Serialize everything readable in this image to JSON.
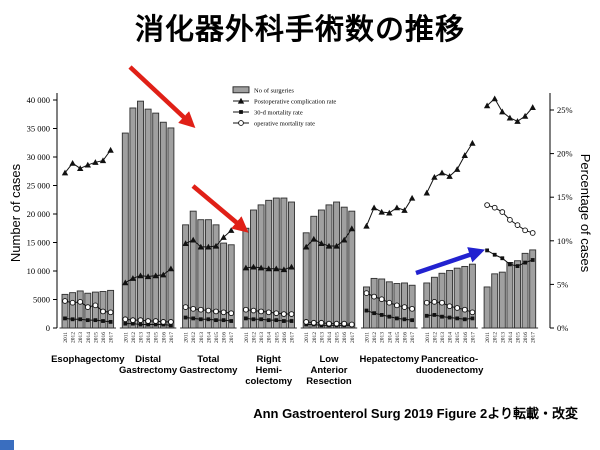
{
  "slide": {
    "title": "消化器外科手術数の推移",
    "attribution": "Ann Gastroenterol Surg 2019 Figure 2より転載・改変"
  },
  "chart_data": {
    "type": "bar",
    "subtype": "grouped bars (left axis) with three line series (right axis)",
    "title": "消化器外科手術数の推移",
    "years": [
      "2011",
      "2012",
      "2013",
      "2014",
      "2015",
      "2016",
      "2017"
    ],
    "left_axis": {
      "label": "Number of cases",
      "min": 0,
      "max": 40000,
      "tick_values": [
        0,
        5000,
        10000,
        15000,
        20000,
        25000,
        30000,
        35000,
        40000
      ],
      "tick_labels": [
        "0",
        "5000",
        "10 000",
        "15 000",
        "20 000",
        "25 000",
        "30 000",
        "35 000",
        "40 000"
      ]
    },
    "right_axis": {
      "label": "Percentage of cases",
      "min": 0,
      "max": 25,
      "tick_values": [
        0,
        5,
        10,
        15,
        20,
        25
      ],
      "tick_labels": [
        "0%",
        "5%",
        "10%",
        "15%",
        "20%",
        "25%"
      ]
    },
    "legend": [
      {
        "marker": "bar",
        "label": "No of surgeries"
      },
      {
        "marker": "triangle",
        "label": "Postoperative complication rate"
      },
      {
        "marker": "square",
        "label": "30-d mortality rate"
      },
      {
        "marker": "circle",
        "label": "operative mortality rate"
      }
    ],
    "groups": [
      {
        "label": "Esophagectomy",
        "label_lines": [
          "Esophagectomy"
        ],
        "surgeries": [
          5900,
          6200,
          6500,
          6100,
          6300,
          6400,
          6600
        ],
        "complication_rate": [
          17.8,
          18.9,
          18.3,
          18.7,
          19.0,
          19.2,
          20.4
        ],
        "mortality_30d": [
          1.1,
          1.0,
          1.0,
          0.9,
          0.9,
          0.8,
          0.7
        ],
        "operative_mortality": [
          3.1,
          2.9,
          3.0,
          2.4,
          2.6,
          1.9,
          1.8
        ]
      },
      {
        "label": "Distal Gastrectomy",
        "label_lines": [
          "Distal",
          "Gastrectomy"
        ],
        "surgeries": [
          34200,
          38600,
          39800,
          38400,
          37700,
          36100,
          35100
        ],
        "complication_rate": [
          5.2,
          5.7,
          6.0,
          5.9,
          6.0,
          6.1,
          6.8
        ],
        "mortality_30d": [
          0.5,
          0.5,
          0.4,
          0.4,
          0.4,
          0.4,
          0.3
        ],
        "operative_mortality": [
          1.0,
          0.9,
          0.9,
          0.8,
          0.8,
          0.7,
          0.7
        ]
      },
      {
        "label": "Total Gastrectomy",
        "label_lines": [
          "Total",
          "Gastrectomy"
        ],
        "surgeries": [
          18100,
          20500,
          19000,
          19000,
          18100,
          14900,
          14600
        ],
        "complication_rate": [
          9.7,
          10.1,
          9.3,
          9.3,
          9.4,
          10.4,
          11.2
        ],
        "mortality_30d": [
          1.2,
          1.1,
          1.0,
          1.0,
          0.9,
          0.9,
          0.8
        ],
        "operative_mortality": [
          2.4,
          2.2,
          2.1,
          2.0,
          1.9,
          1.8,
          1.7
        ]
      },
      {
        "label": "Right Hemi-colectomy",
        "label_lines": [
          "Right",
          "Hemi-",
          "colectomy"
        ],
        "surgeries": [
          17500,
          20700,
          21600,
          22400,
          22800,
          22800,
          22100
        ],
        "complication_rate": [
          6.9,
          7.0,
          6.9,
          6.8,
          6.8,
          6.7,
          7.0
        ],
        "mortality_30d": [
          1.1,
          1.0,
          1.0,
          0.9,
          0.9,
          0.8,
          0.8
        ],
        "operative_mortality": [
          2.1,
          2.0,
          1.9,
          1.8,
          1.7,
          1.6,
          1.6
        ]
      },
      {
        "label": "Low Anterior Resection",
        "label_lines": [
          "Low",
          "Anterior",
          "Resection"
        ],
        "surgeries": [
          16700,
          19600,
          20700,
          21600,
          22100,
          21200,
          20500
        ],
        "complication_rate": [
          9.3,
          10.2,
          9.7,
          9.4,
          9.4,
          10.1,
          11.4
        ],
        "mortality_30d": [
          0.4,
          0.4,
          0.3,
          0.3,
          0.3,
          0.3,
          0.3
        ],
        "operative_mortality": [
          0.7,
          0.6,
          0.6,
          0.5,
          0.5,
          0.5,
          0.4
        ]
      },
      {
        "label": "Hepatectomy",
        "label_lines": [
          "Hepatectomy"
        ],
        "surgeries": [
          7200,
          8700,
          8600,
          8100,
          7800,
          7900,
          7500
        ],
        "complication_rate": [
          11.7,
          13.8,
          13.3,
          13.2,
          13.8,
          13.5,
          14.9
        ],
        "mortality_30d": [
          2.0,
          1.7,
          1.5,
          1.3,
          1.1,
          1.0,
          0.9
        ],
        "operative_mortality": [
          4.0,
          3.6,
          3.3,
          2.9,
          2.6,
          2.4,
          2.2
        ]
      },
      {
        "label": "Pancreatico-duodenectomy",
        "label_lines": [
          "Pancreatico-",
          "duodenectomy"
        ],
        "surgeries": [
          7900,
          8900,
          9600,
          10100,
          10500,
          10800,
          11200
        ],
        "complication_rate": [
          15.5,
          17.3,
          17.8,
          17.4,
          18.2,
          19.8,
          21.2
        ],
        "mortality_30d": [
          1.4,
          1.5,
          1.3,
          1.2,
          1.1,
          1.0,
          1.1
        ],
        "operative_mortality": [
          2.9,
          3.0,
          2.9,
          2.5,
          2.3,
          2.1,
          1.8
        ]
      },
      {
        "label": "",
        "label_lines": [],
        "surgeries": [
          7200,
          9500,
          9800,
          11500,
          11800,
          13100,
          13700
        ],
        "complication_rate": [
          25.5,
          26.3,
          24.8,
          24.1,
          23.7,
          24.3,
          25.3
        ],
        "mortality_30d": [
          8.9,
          8.4,
          8.0,
          7.3,
          7.1,
          7.5,
          7.8
        ],
        "operative_mortality": [
          14.1,
          13.8,
          13.3,
          12.4,
          11.8,
          11.2,
          10.9
        ]
      }
    ],
    "annotations": [
      {
        "type": "arrow",
        "color": "#e02017",
        "from": [
          130,
          67
        ],
        "to": [
          190,
          123
        ]
      },
      {
        "type": "arrow",
        "color": "#e02017",
        "from": [
          193,
          186
        ],
        "to": [
          243,
          228
        ]
      },
      {
        "type": "arrow",
        "color": "#2222d0",
        "from": [
          416,
          273
        ],
        "to": [
          478,
          252
        ]
      }
    ],
    "colors": {
      "bar_fill": "#a0a0a0",
      "bar_stroke": "#2e2e2e",
      "line": "#111111"
    },
    "grid": false,
    "legend_position": "top-center-inside"
  }
}
